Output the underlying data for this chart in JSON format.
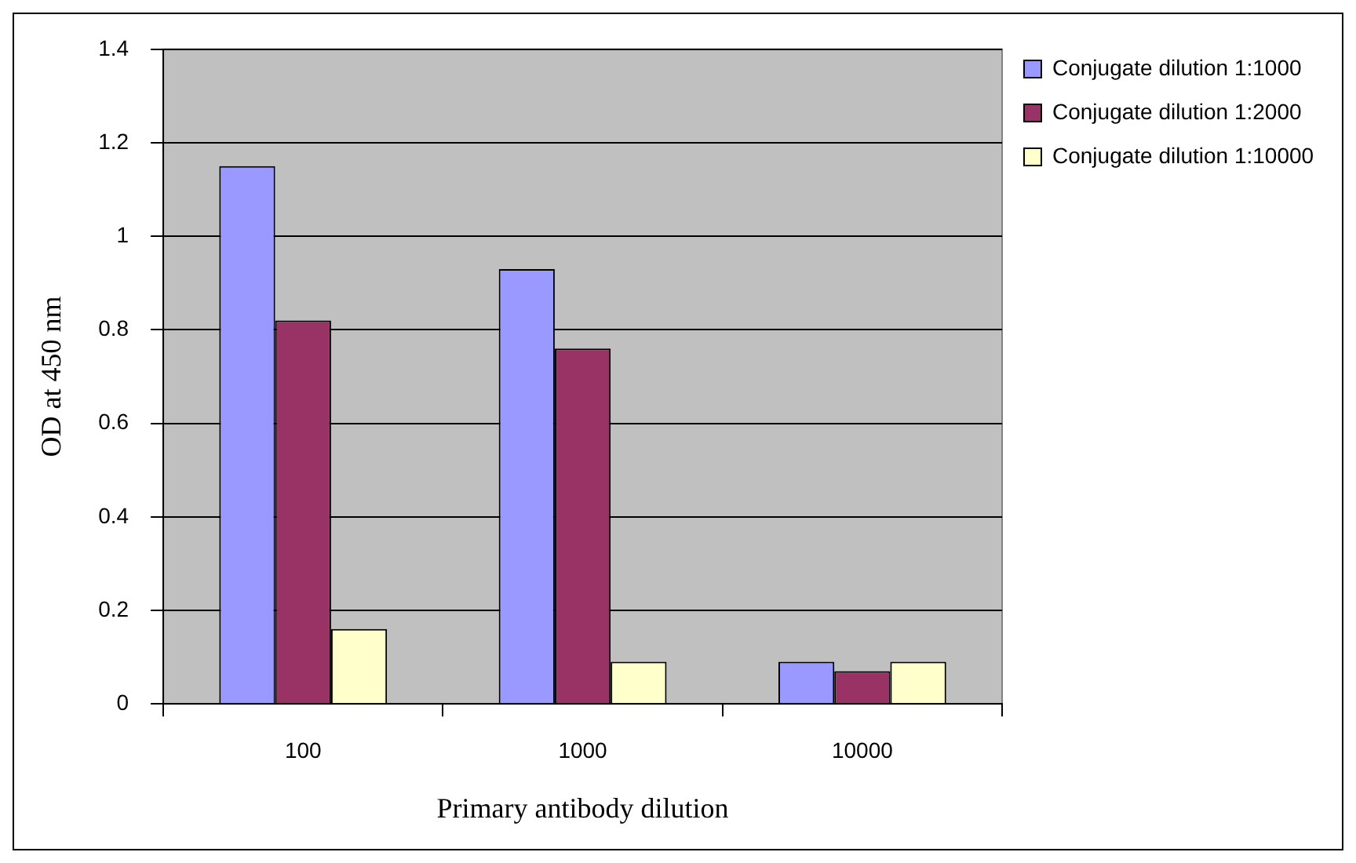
{
  "chart_data": {
    "type": "bar",
    "xlabel": "Primary antibody dilution",
    "ylabel": "OD at 450 nm",
    "categories": [
      "100",
      "1000",
      "10000"
    ],
    "series": [
      {
        "name": "Conjugate dilution 1:1000",
        "color": "#9999ff",
        "values": [
          1.15,
          0.93,
          0.09
        ]
      },
      {
        "name": "Conjugate dilution 1:2000",
        "color": "#993366",
        "values": [
          0.82,
          0.76,
          0.07
        ]
      },
      {
        "name": "Conjugate dilution 1:10000",
        "color": "#ffffcc",
        "values": [
          0.16,
          0.09,
          0.09
        ]
      }
    ],
    "ylim": [
      0,
      1.4
    ],
    "yticks": [
      0,
      0.2,
      0.4,
      0.6,
      0.8,
      1,
      1.2,
      1.4
    ],
    "grid": "y",
    "legend": "top right"
  }
}
